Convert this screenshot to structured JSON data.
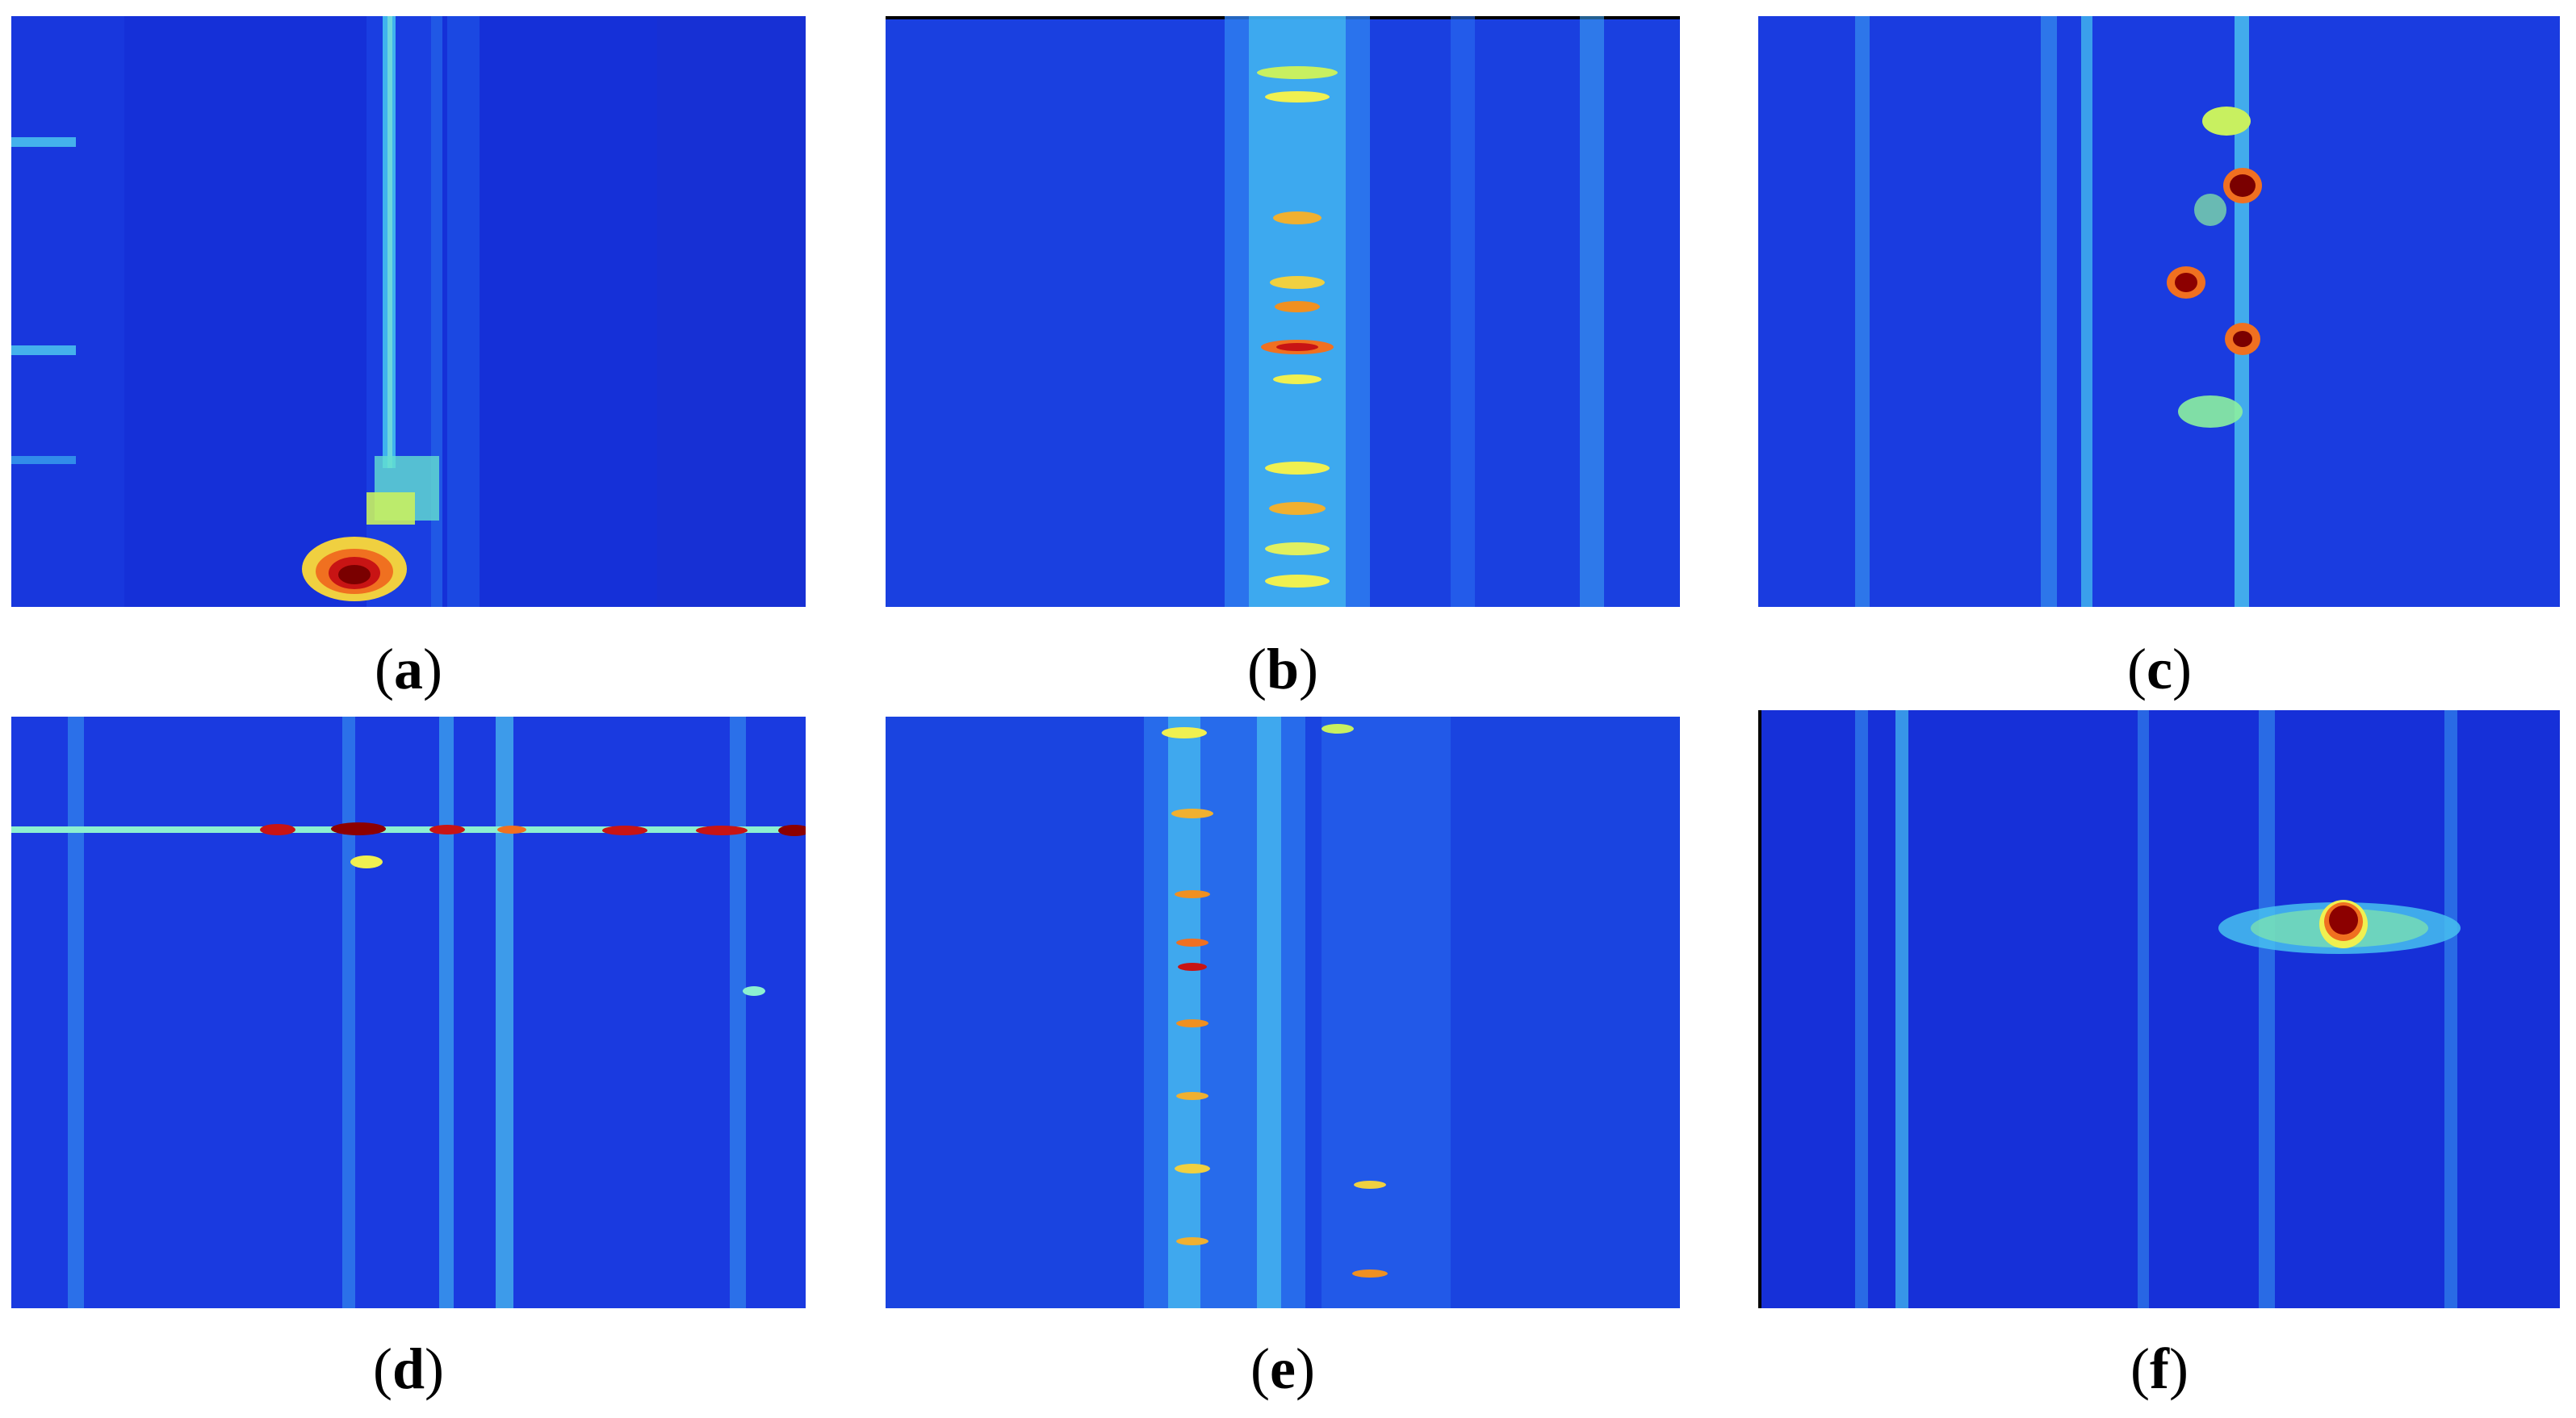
{
  "figure": {
    "panels": [
      {
        "id": "a",
        "label": "a",
        "icon": "spectrogram-image"
      },
      {
        "id": "b",
        "label": "b",
        "icon": "spectrogram-image"
      },
      {
        "id": "c",
        "label": "c",
        "icon": "spectrogram-image"
      },
      {
        "id": "d",
        "label": "d",
        "icon": "spectrogram-image"
      },
      {
        "id": "e",
        "label": "e",
        "icon": "spectrogram-image"
      },
      {
        "id": "f",
        "label": "f",
        "icon": "spectrogram-image"
      }
    ],
    "colormap": [
      "#1020c0",
      "#1e5af0",
      "#32b4f0",
      "#8cf0a0",
      "#f0f050",
      "#f08c1e",
      "#c81414",
      "#8c0000"
    ]
  }
}
